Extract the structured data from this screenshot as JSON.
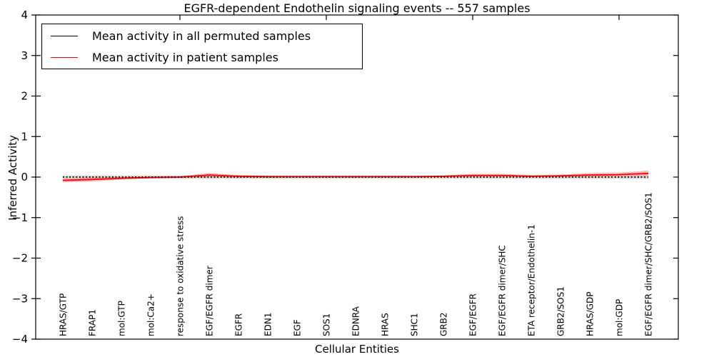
{
  "chart_data": {
    "type": "line",
    "title": "EGFR-dependent Endothelin signaling events -- 557 samples",
    "xlabel": "Cellular Entities",
    "ylabel": "Inferred Activity",
    "ylim": [
      -4,
      4
    ],
    "yticks": [
      4,
      3,
      2,
      1,
      0,
      -1,
      -2,
      -3,
      -4
    ],
    "ytick_labels": [
      "4",
      "3",
      "2",
      "1",
      "0",
      "−1",
      "−2",
      "−3",
      "−4"
    ],
    "grid": false,
    "legend_position": "upper left",
    "categories": [
      "HRAS/GTP",
      "FRAP1",
      "mol:GTP",
      "mol:Ca2+",
      "response to oxidative stress",
      "EGF/EGFR dimer",
      "EGFR",
      "EDN1",
      "EGF",
      "SOS1",
      "EDNRA",
      "HRAS",
      "SHC1",
      "GRB2",
      "EGF/EGFR",
      "EGF/EGFR dimer/SHC",
      "ETA receptor/Endothelin-1",
      "GRB2/SOS1",
      "HRAS/GDP",
      "mol:GDP",
      "EGF/EGFR dimer/SHC/GRB2/SOS1"
    ],
    "series": [
      {
        "name": "Mean activity in all permuted samples",
        "color": "#000000",
        "style": "dotted",
        "values": [
          0,
          0,
          0,
          0,
          0,
          0,
          0,
          0,
          0,
          0,
          0,
          0,
          0,
          0,
          0,
          0,
          0,
          0,
          0,
          0,
          0
        ],
        "band_upper": [
          0.04,
          0.04,
          0.04,
          0.04,
          0.04,
          0.04,
          0.04,
          0.04,
          0.04,
          0.04,
          0.04,
          0.04,
          0.04,
          0.04,
          0.04,
          0.04,
          0.04,
          0.04,
          0.04,
          0.04,
          0.04
        ],
        "band_lower": [
          -0.04,
          -0.04,
          -0.04,
          -0.04,
          -0.04,
          -0.04,
          -0.04,
          -0.04,
          -0.04,
          -0.04,
          -0.04,
          -0.04,
          -0.04,
          -0.04,
          -0.04,
          -0.04,
          -0.04,
          -0.04,
          -0.04,
          -0.04,
          -0.04
        ],
        "band_color": "rgba(130,130,130,0.35)"
      },
      {
        "name": "Mean activity in patient samples",
        "color": "#ff0000",
        "style": "solid",
        "values": [
          -0.08,
          -0.06,
          -0.03,
          -0.01,
          0.0,
          0.05,
          0.02,
          0.01,
          0.01,
          0.01,
          0.01,
          0.01,
          0.01,
          0.02,
          0.04,
          0.04,
          0.02,
          0.03,
          0.05,
          0.06,
          0.09
        ],
        "band_upper": [
          -0.04,
          -0.01,
          0.0,
          0.01,
          0.02,
          0.1,
          0.05,
          0.03,
          0.02,
          0.02,
          0.02,
          0.02,
          0.02,
          0.04,
          0.08,
          0.08,
          0.05,
          0.06,
          0.1,
          0.11,
          0.16
        ],
        "band_lower": [
          -0.13,
          -0.11,
          -0.06,
          -0.03,
          -0.02,
          0.0,
          -0.01,
          -0.01,
          0.0,
          0.0,
          0.0,
          0.0,
          0.0,
          0.0,
          0.01,
          0.01,
          0.0,
          0.01,
          0.01,
          0.02,
          0.03
        ],
        "band_color": "rgba(255,0,0,0.28)"
      }
    ]
  }
}
